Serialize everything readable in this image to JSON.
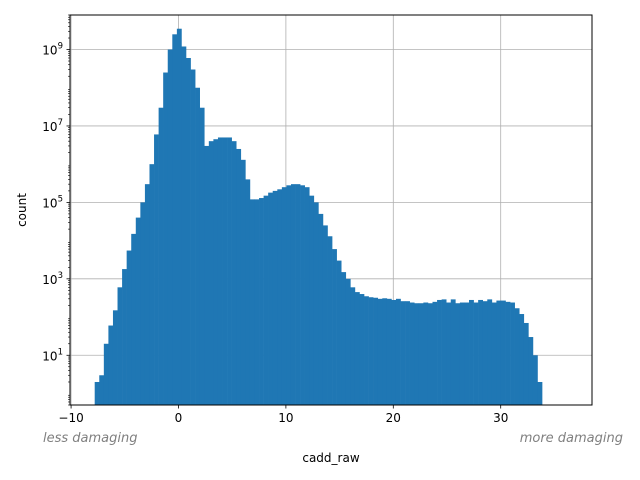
{
  "chart_data": {
    "type": "bar",
    "subtype": "histogram",
    "xlabel": "cadd_raw",
    "ylabel": "count",
    "y_scale": "log",
    "xlim": [
      -10.1,
      38.5
    ],
    "ylim": [
      0.5,
      8000000000
    ],
    "grid": true,
    "x_ticks": [
      -10,
      0,
      10,
      20,
      30
    ],
    "y_ticks": [
      {
        "value": 10,
        "base": "10",
        "exp": "1"
      },
      {
        "value": 1000,
        "base": "10",
        "exp": "3"
      },
      {
        "value": 100000,
        "base": "10",
        "exp": "5"
      },
      {
        "value": 10000000,
        "base": "10",
        "exp": "7"
      },
      {
        "value": 1000000000,
        "base": "10",
        "exp": "9"
      }
    ],
    "annotations": [
      {
        "text": "less damaging",
        "anchor": "left"
      },
      {
        "text": "more damaging",
        "anchor": "right"
      }
    ],
    "bar_color": "#1f77b4",
    "bin_start": -7.8,
    "bin_width": 0.425,
    "values": [
      2,
      3,
      20,
      60,
      150,
      600,
      1800,
      5500,
      15000,
      40000,
      100000,
      300000,
      1000000,
      6000000,
      30000000,
      250000000,
      1000000000,
      2500000000,
      3500000000,
      1200000000,
      600000000,
      300000000,
      100000000,
      30000000,
      3000000,
      4000000,
      4500000,
      5000000,
      5000000,
      5000000,
      4000000,
      2500000,
      1300000,
      400000,
      120000,
      120000,
      130000,
      150000,
      180000,
      200000,
      220000,
      250000,
      280000,
      300000,
      300000,
      280000,
      250000,
      150000,
      100000,
      50000,
      25000,
      13000,
      6000,
      3000,
      1500,
      1000,
      600,
      450,
      400,
      350,
      330,
      320,
      300,
      310,
      300,
      280,
      300,
      260,
      260,
      240,
      230,
      230,
      240,
      230,
      250,
      280,
      290,
      240,
      290,
      230,
      240,
      240,
      280,
      240,
      280,
      260,
      290,
      240,
      270,
      270,
      250,
      240,
      170,
      120,
      70,
      30,
      10,
      2
    ]
  }
}
